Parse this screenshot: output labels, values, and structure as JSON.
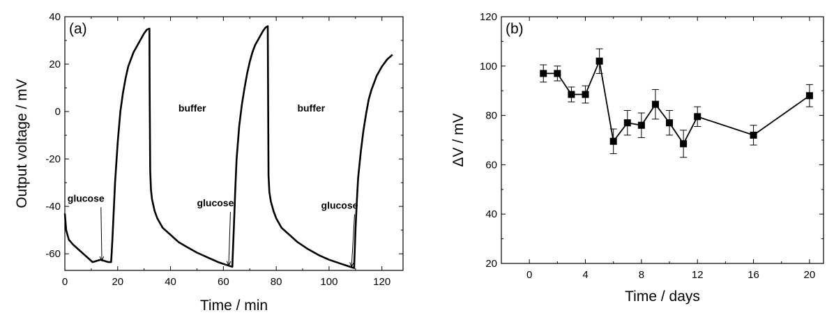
{
  "chart_data": [
    {
      "type": "line",
      "panel_label": "(a)",
      "xlabel": "Time / min",
      "ylabel": "Output voltage / mV",
      "xlim": [
        0,
        128
      ],
      "ylim": [
        -67,
        40
      ],
      "xticks": [
        0,
        20,
        40,
        60,
        80,
        100,
        120
      ],
      "yticks": [
        -60,
        -40,
        -20,
        0,
        20,
        40
      ],
      "series": [
        {
          "x": [
            0,
            0.5,
            1.5,
            3,
            5,
            7,
            9,
            10.5,
            12,
            13.5,
            15,
            16.5,
            17.5,
            17.6,
            18,
            18.5,
            19,
            20,
            21,
            22,
            23,
            24,
            25,
            26,
            27,
            28,
            29,
            30,
            31,
            32,
            32.1,
            32.3,
            32.6,
            33,
            34,
            35,
            37,
            40,
            43,
            46,
            50,
            54,
            58,
            62,
            63.4,
            63.5,
            64,
            64.5,
            65,
            66,
            67,
            68,
            69,
            70,
            71,
            72,
            73,
            74,
            75,
            76,
            76.8,
            76.9,
            77.1,
            77.4,
            78,
            79,
            80,
            82,
            85,
            88,
            92,
            96,
            100,
            104,
            108,
            109.5,
            109.6,
            110,
            110.5,
            111,
            112,
            113,
            114,
            115,
            116,
            117,
            118,
            119,
            120,
            121,
            122,
            123,
            124
          ],
          "y": [
            -43,
            -50,
            -54,
            -56,
            -58,
            -60,
            -62,
            -63.5,
            -63,
            -62.5,
            -63,
            -63.5,
            -63.5,
            -62,
            -54,
            -42,
            -30,
            -13,
            0,
            8,
            14,
            19,
            22,
            25,
            27,
            29,
            31,
            33,
            34.5,
            35,
            10,
            -25,
            -33,
            -37,
            -42,
            -45,
            -49,
            -52,
            -55,
            -57,
            -59.5,
            -61.5,
            -63.5,
            -65,
            -65.5,
            -62,
            -48,
            -33,
            -20,
            -6,
            3,
            10,
            16,
            21,
            25,
            28,
            30,
            32,
            34,
            35.5,
            36,
            12,
            -27,
            -34,
            -38,
            -42,
            -45,
            -49,
            -52,
            -55,
            -58,
            -60.5,
            -62.5,
            -64,
            -65.5,
            -66,
            -62,
            -50,
            -38,
            -28,
            -17,
            -8,
            -1,
            5,
            9,
            12,
            15,
            17,
            19,
            20.5,
            22,
            23,
            24
          ]
        }
      ],
      "annotations": [
        {
          "text": "glucose",
          "x": 1,
          "y": -38,
          "arrow_to": [
            14,
            -63
          ]
        },
        {
          "text": "glucose",
          "x": 50,
          "y": -40,
          "arrow_to": [
            62,
            -65
          ]
        },
        {
          "text": "glucose",
          "x": 97,
          "y": -41,
          "arrow_to": [
            108.5,
            -65.5
          ]
        },
        {
          "text": "buffer",
          "x": 43,
          "y": 0
        },
        {
          "text": "buffer",
          "x": 88,
          "y": 0
        }
      ]
    },
    {
      "type": "scatter",
      "panel_label": "(b)",
      "xlabel": "Time / days",
      "ylabel": "ΔV / mV",
      "xlim": [
        -2,
        21
      ],
      "ylim": [
        20,
        120
      ],
      "xticks": [
        0,
        4,
        8,
        12,
        16,
        20
      ],
      "yticks": [
        20,
        40,
        60,
        80,
        100,
        120
      ],
      "series": [
        {
          "x": [
            1,
            2,
            3,
            4,
            5,
            6,
            7,
            8,
            9,
            10,
            11,
            12,
            16,
            20
          ],
          "y": [
            97,
            97,
            88.5,
            88.5,
            102,
            69.5,
            77,
            76,
            84.5,
            77,
            68.5,
            79.5,
            72,
            88
          ],
          "error": [
            3.5,
            3,
            3,
            3.5,
            5,
            5,
            5,
            5,
            6,
            5,
            5.5,
            4,
            4,
            4.5
          ]
        }
      ]
    }
  ]
}
